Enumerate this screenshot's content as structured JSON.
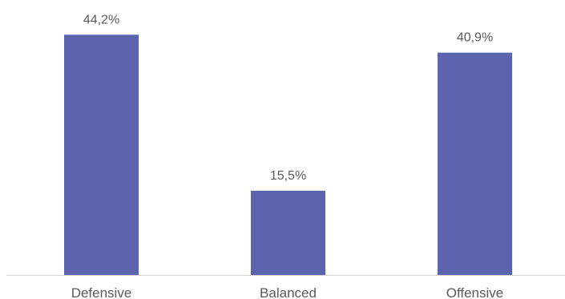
{
  "chart_data": {
    "type": "bar",
    "categories": [
      "Defensive",
      "Balanced",
      "Offensive"
    ],
    "values": [
      44.2,
      15.5,
      40.9
    ],
    "data_labels": [
      "44,2%",
      "15,5%",
      "40,9%"
    ],
    "unit": "%",
    "title": "",
    "xlabel": "",
    "ylabel": "",
    "ylim": [
      0,
      50
    ],
    "grid": false,
    "legend": "none",
    "bar_color": "#5c64ad"
  }
}
